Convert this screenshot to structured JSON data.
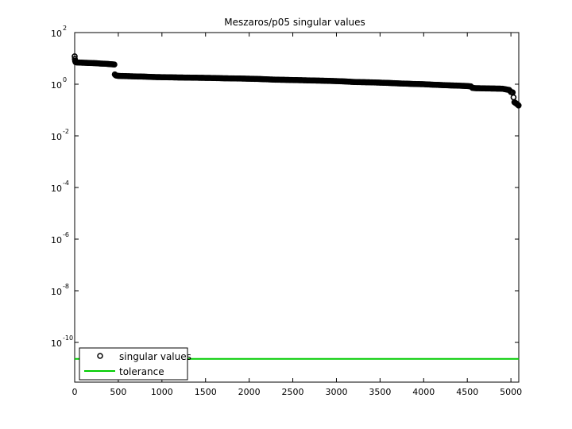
{
  "chart_data": {
    "type": "scatter",
    "title": "Meszaros/p05 singular values",
    "xlabel": "",
    "ylabel": "",
    "xlim": [
      0,
      5090
    ],
    "ylim": [
      1e-12,
      100
    ],
    "yscale": "log",
    "grid": false,
    "legend_position": "bottom-left",
    "x_ticks": [
      0,
      500,
      1000,
      1500,
      2000,
      2500,
      3000,
      3500,
      4000,
      4500,
      5000
    ],
    "y_ticks": [
      {
        "base": "10",
        "exp": "2",
        "value": 100
      },
      {
        "base": "10",
        "exp": "0",
        "value": 1
      },
      {
        "base": "10",
        "exp": "-2",
        "value": 0.01
      },
      {
        "base": "10",
        "exp": "-4",
        "value": 0.0001
      },
      {
        "base": "10",
        "exp": "-6",
        "value": 1e-06
      },
      {
        "base": "10",
        "exp": "-8",
        "value": 1e-08
      },
      {
        "base": "10",
        "exp": "-10",
        "value": 1e-10
      }
    ],
    "series": [
      {
        "name": "singular values",
        "marker": "circle-open",
        "color": "#000000",
        "points": [
          [
            0,
            12.0
          ],
          [
            2,
            9.5
          ],
          [
            5,
            8.0
          ],
          [
            10,
            7.2
          ],
          [
            20,
            7.0
          ],
          [
            50,
            6.9
          ],
          [
            100,
            6.8
          ],
          [
            150,
            6.7
          ],
          [
            200,
            6.6
          ],
          [
            250,
            6.5
          ],
          [
            300,
            6.3
          ],
          [
            350,
            6.2
          ],
          [
            400,
            6.0
          ],
          [
            430,
            5.9
          ],
          [
            455,
            5.8
          ],
          [
            460,
            2.4
          ],
          [
            470,
            2.2
          ],
          [
            480,
            2.15
          ],
          [
            500,
            2.1
          ],
          [
            600,
            2.05
          ],
          [
            700,
            2.0
          ],
          [
            800,
            1.97
          ],
          [
            900,
            1.9
          ],
          [
            1000,
            1.87
          ],
          [
            1100,
            1.85
          ],
          [
            1200,
            1.82
          ],
          [
            1300,
            1.8
          ],
          [
            1400,
            1.78
          ],
          [
            1500,
            1.76
          ],
          [
            1600,
            1.74
          ],
          [
            1700,
            1.7
          ],
          [
            1800,
            1.68
          ],
          [
            1900,
            1.66
          ],
          [
            2000,
            1.63
          ],
          [
            2100,
            1.6
          ],
          [
            2200,
            1.55
          ],
          [
            2300,
            1.5
          ],
          [
            2400,
            1.48
          ],
          [
            2500,
            1.45
          ],
          [
            2600,
            1.43
          ],
          [
            2700,
            1.4
          ],
          [
            2800,
            1.38
          ],
          [
            2900,
            1.35
          ],
          [
            3000,
            1.32
          ],
          [
            3100,
            1.28
          ],
          [
            3200,
            1.22
          ],
          [
            3300,
            1.2
          ],
          [
            3400,
            1.18
          ],
          [
            3500,
            1.15
          ],
          [
            3600,
            1.12
          ],
          [
            3700,
            1.08
          ],
          [
            3800,
            1.05
          ],
          [
            3900,
            1.02
          ],
          [
            4000,
            1.0
          ],
          [
            4100,
            0.96
          ],
          [
            4200,
            0.93
          ],
          [
            4300,
            0.9
          ],
          [
            4400,
            0.88
          ],
          [
            4500,
            0.85
          ],
          [
            4540,
            0.83
          ],
          [
            4560,
            0.72
          ],
          [
            4600,
            0.7
          ],
          [
            4700,
            0.69
          ],
          [
            4800,
            0.68
          ],
          [
            4900,
            0.67
          ],
          [
            4980,
            0.6
          ],
          [
            5000,
            0.5
          ],
          [
            5020,
            0.48
          ],
          [
            5040,
            0.2
          ],
          [
            5060,
            0.18
          ],
          [
            5080,
            0.16
          ],
          [
            5088,
            0.15
          ]
        ]
      },
      {
        "name": "tolerance",
        "type": "line",
        "color": "#00cc00",
        "points": [
          [
            0,
            2.3e-11
          ],
          [
            5090,
            2.3e-11
          ]
        ]
      }
    ]
  }
}
